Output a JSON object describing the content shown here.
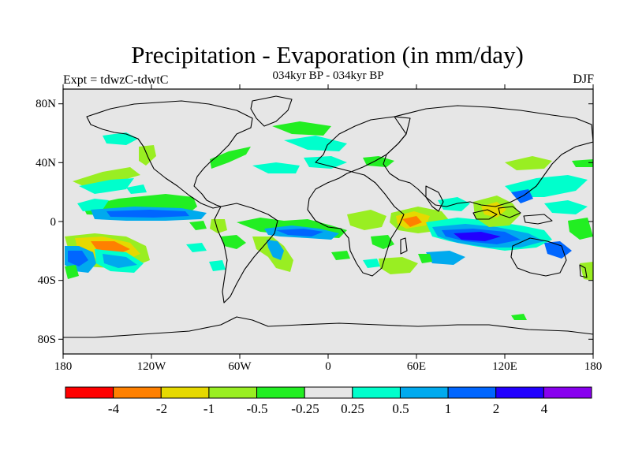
{
  "title": "Precipitation - Evaporation (in mm/day)",
  "subtitle": "034kyr BP - 034kyr BP",
  "experiment_label": "Expt = tdwzC-tdwtC",
  "season": "DJF",
  "map": {
    "projection": "cylindrical-equidistant",
    "lon_range": [
      -180,
      180
    ],
    "lat_range": [
      -90,
      90
    ],
    "background_color": "#e6e6e6",
    "lat_tick_labels": [
      "80N",
      "40N",
      "0",
      "40S",
      "80S"
    ],
    "lon_tick_labels": [
      "180",
      "120W",
      "60W",
      "0",
      "60E",
      "120E",
      "180"
    ]
  },
  "colorbar": {
    "colors": [
      "#ff0000",
      "#ff8000",
      "#e6d900",
      "#99ee22",
      "#22ee22",
      "#e6e6e6",
      "#00ffcc",
      "#00aaee",
      "#0066ff",
      "#2200ff",
      "#8800ee"
    ],
    "labels": [
      "-4",
      "-2",
      "-1",
      "-0.5",
      "-0.25",
      "0.25",
      "0.5",
      "1",
      "2",
      "4"
    ]
  }
}
